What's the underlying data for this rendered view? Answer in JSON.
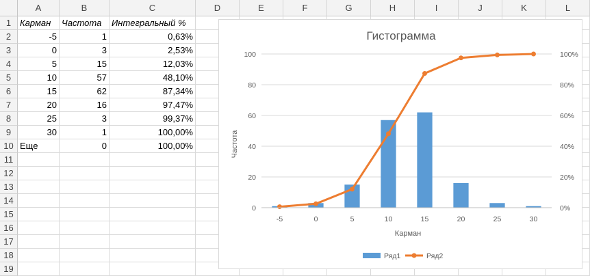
{
  "spreadsheet": {
    "columns": [
      "A",
      "B",
      "C",
      "D",
      "E",
      "F",
      "G",
      "H",
      "I",
      "J",
      "K",
      "L"
    ],
    "row_numbers": [
      "1",
      "2",
      "3",
      "4",
      "5",
      "6",
      "7",
      "8",
      "9",
      "10",
      "11",
      "12",
      "13",
      "14",
      "15",
      "16",
      "17",
      "18",
      "19"
    ],
    "headers": [
      "Карман",
      "Частота",
      "Интегральный %"
    ],
    "rows": [
      [
        "-5",
        "1",
        "0,63%"
      ],
      [
        "0",
        "3",
        "2,53%"
      ],
      [
        "5",
        "15",
        "12,03%"
      ],
      [
        "10",
        "57",
        "48,10%"
      ],
      [
        "15",
        "62",
        "87,34%"
      ],
      [
        "20",
        "16",
        "97,47%"
      ],
      [
        "25",
        "3",
        "99,37%"
      ],
      [
        "30",
        "1",
        "100,00%"
      ],
      [
        "Еще",
        "0",
        "100,00%"
      ]
    ]
  },
  "chart_data": {
    "type": "bar",
    "title": "Гистограмма",
    "xlabel": "Карман",
    "ylabel": "Частота",
    "categories": [
      "-5",
      "0",
      "5",
      "10",
      "15",
      "20",
      "25",
      "30"
    ],
    "series": [
      {
        "name": "Ряд1",
        "type": "bar",
        "axis": "left",
        "values": [
          1,
          3,
          15,
          57,
          62,
          16,
          3,
          1
        ],
        "color": "#5b9bd5"
      },
      {
        "name": "Ряд2",
        "type": "line",
        "axis": "right",
        "values": [
          0.63,
          2.53,
          12.03,
          48.1,
          87.34,
          97.47,
          99.37,
          100.0
        ],
        "color": "#ed7d31"
      }
    ],
    "ylim": [
      0,
      100
    ],
    "y_ticks": [
      "0",
      "20",
      "40",
      "60",
      "80",
      "100"
    ],
    "y2lim": [
      0,
      100
    ],
    "y2_ticks": [
      "0%",
      "20%",
      "40%",
      "60%",
      "80%",
      "100%"
    ],
    "grid": true,
    "legend_position": "bottom"
  }
}
